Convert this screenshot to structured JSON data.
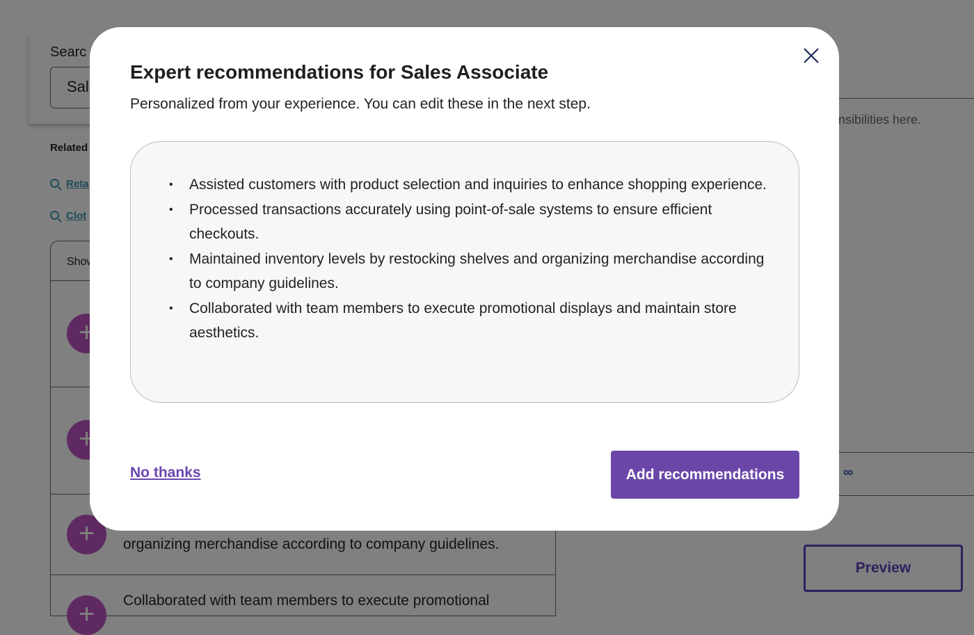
{
  "background": {
    "search_label": "Searc",
    "search_value": "Sal",
    "related_label": "Related",
    "related_links": [
      "Reta",
      "Clot"
    ],
    "list_header": "Show",
    "rows": [
      "",
      "",
      "organizing merchandise according to company guidelines.",
      "Collaborated with team members to execute promotional"
    ],
    "editor_hint": "nsibilities here.",
    "preview_label": "Preview"
  },
  "modal": {
    "title": "Expert recommendations for Sales Associate",
    "subtitle": "Personalized from your experience. You can edit these in the next step.",
    "recommendations": [
      "Assisted customers with product selection and inquiries to enhance shopping experience.",
      "Processed transactions accurately using point-of-sale systems to ensure efficient checkouts.",
      "Maintained inventory levels by restocking shelves and organizing merchandise according to company guidelines.",
      "Collaborated with team members to execute promotional displays and maintain store aesthetics."
    ],
    "no_thanks_label": "No thanks",
    "add_label": "Add recommendations",
    "accent_color": "#6a46a8"
  }
}
